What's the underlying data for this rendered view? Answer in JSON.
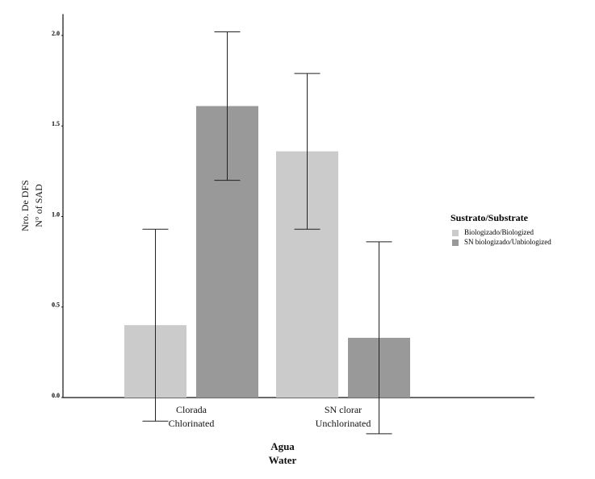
{
  "chart_data": {
    "type": "bar",
    "x_label": "Agua\nWater",
    "y_label": "Nro. De DFS\nN° of SAD",
    "categories": [
      "Clorada\nChlorinated",
      "SN clorar\nUnchlorinated"
    ],
    "series": [
      {
        "name": "Biologizado/Biologized",
        "color": "#cbcbcb",
        "values": [
          0.4,
          1.36
        ],
        "errors": [
          0.53,
          0.43
        ]
      },
      {
        "name": "SN biologizado/Unbiologized",
        "color": "#999999",
        "values": [
          1.61,
          0.33
        ],
        "errors": [
          0.41,
          0.53
        ]
      }
    ],
    "ylim": [
      0,
      2.1
    ],
    "yticks": [
      {
        "value": 0,
        "label": "0.0"
      },
      0.5,
      {
        "value": 1,
        "label": "1.0"
      },
      1.5,
      {
        "value": 2,
        "label": "2.0"
      }
    ],
    "legend_title": "Sustrato/Substrate",
    "legend_position": "right",
    "grid": false
  }
}
